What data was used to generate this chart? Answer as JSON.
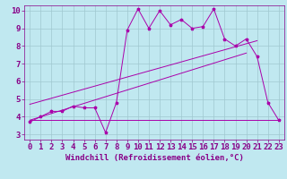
{
  "bg_color": "#c0e8f0",
  "line_color": "#aa00aa",
  "xlabel": "Windchill (Refroidissement éolien,°C)",
  "xlim": [
    -0.5,
    23.5
  ],
  "ylim": [
    2.7,
    10.3
  ],
  "yticks": [
    3,
    4,
    5,
    6,
    7,
    8,
    9,
    10
  ],
  "xticks": [
    0,
    1,
    2,
    3,
    4,
    5,
    6,
    7,
    8,
    9,
    10,
    11,
    12,
    13,
    14,
    15,
    16,
    17,
    18,
    19,
    20,
    21,
    22,
    23
  ],
  "series1_x": [
    0,
    1,
    2,
    3,
    4,
    5,
    6,
    7,
    8,
    9,
    10,
    11,
    12,
    13,
    14,
    15,
    16,
    17,
    18,
    19,
    20,
    21,
    22,
    23
  ],
  "series1_y": [
    3.7,
    4.0,
    4.3,
    4.3,
    4.6,
    4.5,
    4.5,
    3.1,
    4.8,
    8.9,
    10.1,
    9.0,
    10.0,
    9.2,
    9.5,
    9.0,
    9.1,
    10.1,
    8.4,
    8.0,
    8.4,
    7.4,
    4.8,
    3.8
  ],
  "series2_x": [
    0,
    23
  ],
  "series2_y": [
    3.8,
    3.8
  ],
  "series3_x": [
    0,
    20
  ],
  "series3_y": [
    3.8,
    7.6
  ],
  "series4_x": [
    0,
    21
  ],
  "series4_y": [
    4.7,
    8.3
  ],
  "grid_color": "#a0c8d0",
  "tick_color": "#880088",
  "label_color": "#880088",
  "xlabel_fontsize": 6.5,
  "tick_fontsize": 6.5
}
